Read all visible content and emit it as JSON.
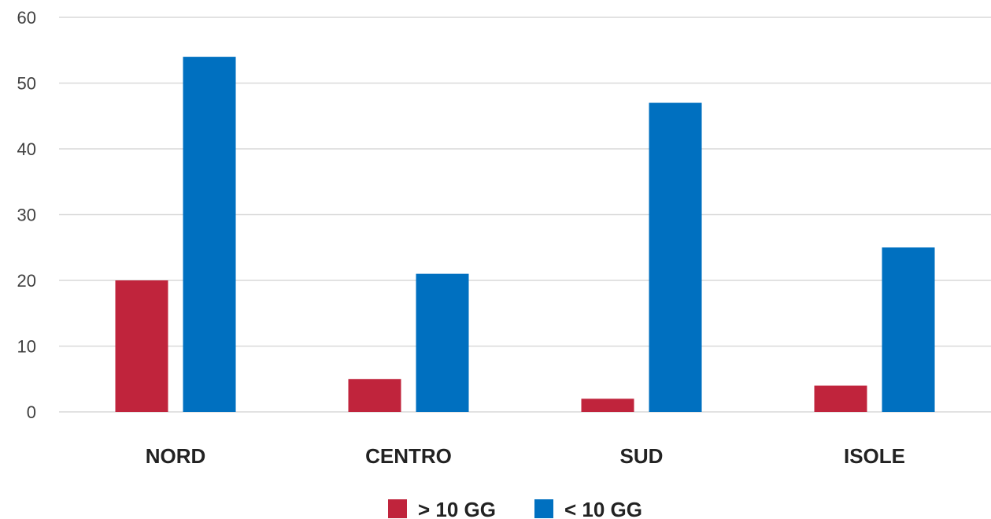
{
  "chart_data": {
    "type": "bar",
    "title": "",
    "xlabel": "",
    "ylabel": "",
    "categories": [
      "NORD",
      "CENTRO",
      "SUD",
      "ISOLE"
    ],
    "series": [
      {
        "name": "> 10 GG",
        "values": [
          20,
          5,
          2,
          4
        ],
        "color": "#C0243C"
      },
      {
        "name": "< 10 GG",
        "values": [
          54,
          21,
          47,
          25
        ],
        "color": "#0070C0"
      }
    ],
    "ylim": [
      0,
      60
    ],
    "yticks": [
      0,
      10,
      20,
      30,
      40,
      50,
      60
    ],
    "grid": true,
    "legend": "bottom-center"
  }
}
